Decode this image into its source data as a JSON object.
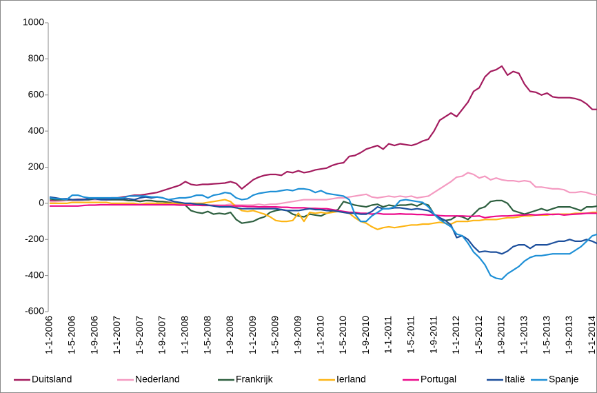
{
  "chart_data": {
    "type": "line",
    "categories": [
      "1-1-2006",
      null,
      null,
      null,
      "1-5-2006",
      null,
      null,
      null,
      "1-9-2006",
      null,
      null,
      null,
      "1-1-2007",
      null,
      null,
      null,
      "1-5-2007",
      null,
      null,
      null,
      "1-9-2007",
      null,
      null,
      null,
      "1-1-2008",
      null,
      null,
      null,
      "1-5-2008",
      null,
      null,
      null,
      "1-9-2008",
      null,
      null,
      null,
      "1-1-2009",
      null,
      null,
      null,
      "1-5-2009",
      null,
      null,
      null,
      "1-9-2009",
      null,
      null,
      null,
      "1-1-2010",
      null,
      null,
      null,
      "1-5-2010",
      null,
      null,
      null,
      "1-9-2010",
      null,
      null,
      null,
      "1-1-2011",
      null,
      null,
      null,
      "1-5-2011",
      null,
      null,
      null,
      "1-9-2011",
      null,
      null,
      null,
      "1-1-2012",
      null,
      null,
      null,
      "1-5-2012",
      null,
      null,
      null,
      "1-9-2012",
      null,
      null,
      null,
      "1-1-2013",
      null,
      null,
      null,
      "1-5-2013",
      null,
      null,
      null,
      "1-9-2013",
      null,
      null,
      null,
      "1-1-2014",
      null
    ],
    "series": [
      {
        "name": "Duitsland",
        "color": "#a31b5e",
        "values": [
          15,
          15,
          18,
          20,
          20,
          22,
          22,
          25,
          25,
          25,
          28,
          30,
          30,
          35,
          40,
          45,
          45,
          50,
          55,
          60,
          70,
          80,
          90,
          100,
          120,
          105,
          100,
          105,
          105,
          108,
          110,
          112,
          120,
          110,
          80,
          105,
          130,
          145,
          155,
          160,
          160,
          155,
          175,
          170,
          180,
          170,
          175,
          185,
          190,
          195,
          210,
          220,
          225,
          260,
          265,
          280,
          300,
          310,
          320,
          300,
          330,
          320,
          330,
          325,
          320,
          330,
          345,
          355,
          400,
          460,
          480,
          500,
          480,
          520,
          560,
          620,
          640,
          700,
          730,
          740,
          760,
          710,
          730,
          720,
          660,
          620,
          615,
          600,
          610,
          590,
          585,
          585,
          585,
          580,
          570,
          550,
          520,
          520
        ]
      },
      {
        "name": "Nederland",
        "color": "#f49ac1",
        "values": [
          10,
          10,
          12,
          15,
          15,
          15,
          18,
          20,
          20,
          20,
          18,
          20,
          20,
          18,
          15,
          15,
          15,
          15,
          12,
          12,
          10,
          8,
          5,
          5,
          0,
          -5,
          -5,
          -5,
          -10,
          -10,
          -10,
          -10,
          -5,
          -10,
          -10,
          -10,
          -10,
          -5,
          -10,
          -5,
          -5,
          0,
          5,
          10,
          15,
          20,
          20,
          20,
          20,
          20,
          25,
          30,
          30,
          35,
          40,
          45,
          50,
          35,
          30,
          35,
          40,
          35,
          40,
          35,
          40,
          30,
          35,
          40,
          60,
          80,
          100,
          120,
          145,
          150,
          170,
          160,
          140,
          150,
          130,
          140,
          130,
          125,
          125,
          120,
          125,
          120,
          90,
          90,
          85,
          80,
          80,
          75,
          60,
          60,
          65,
          60,
          50,
          45
        ]
      },
      {
        "name": "Frankrijk",
        "color": "#2d5f3f",
        "values": [
          25,
          20,
          20,
          20,
          20,
          20,
          20,
          20,
          25,
          25,
          20,
          20,
          20,
          20,
          15,
          15,
          10,
          15,
          15,
          10,
          10,
          5,
          0,
          0,
          -10,
          -40,
          -50,
          -55,
          -45,
          -60,
          -55,
          -60,
          -50,
          -90,
          -110,
          -105,
          -100,
          -85,
          -75,
          -50,
          -40,
          -35,
          -40,
          -60,
          -70,
          -75,
          -60,
          -65,
          -70,
          -55,
          -45,
          -35,
          10,
          0,
          -10,
          -15,
          -20,
          -10,
          -5,
          -20,
          -10,
          -15,
          -10,
          -10,
          -5,
          -15,
          0,
          -10,
          -60,
          -90,
          -95,
          -90,
          -70,
          -75,
          -90,
          -60,
          -30,
          -20,
          10,
          15,
          15,
          0,
          -40,
          -50,
          -60,
          -50,
          -40,
          -30,
          -40,
          -30,
          -20,
          -20,
          -20,
          -30,
          -40,
          -20,
          -20,
          -15
        ]
      },
      {
        "name": "Ierland",
        "color": "#fdb515",
        "values": [
          0,
          0,
          0,
          0,
          5,
          5,
          5,
          5,
          5,
          5,
          5,
          0,
          0,
          0,
          0,
          0,
          -5,
          0,
          0,
          0,
          0,
          0,
          0,
          -5,
          -5,
          0,
          0,
          0,
          5,
          10,
          15,
          20,
          10,
          -20,
          -40,
          -45,
          -40,
          -50,
          -60,
          -75,
          -95,
          -100,
          -100,
          -95,
          -55,
          -100,
          -50,
          -55,
          -50,
          -55,
          -50,
          -45,
          -50,
          -55,
          -80,
          -100,
          -110,
          -130,
          -145,
          -135,
          -130,
          -135,
          -130,
          -125,
          -120,
          -120,
          -115,
          -115,
          -110,
          -105,
          -110,
          -115,
          -100,
          -100,
          -100,
          -95,
          -95,
          -90,
          -90,
          -90,
          -85,
          -80,
          -80,
          -75,
          -70,
          -70,
          -65,
          -65,
          -65,
          -60,
          -60,
          -60,
          -60,
          -55,
          -55,
          -55,
          -50,
          -50
        ]
      },
      {
        "name": "Portugal",
        "color": "#ec0b8c",
        "values": [
          -15,
          -15,
          -15,
          -15,
          -15,
          -15,
          -12,
          -10,
          -10,
          -8,
          -8,
          -8,
          -8,
          -8,
          -8,
          -8,
          -8,
          -8,
          -8,
          -8,
          -8,
          -8,
          -8,
          -10,
          -10,
          -10,
          -10,
          -12,
          -12,
          -12,
          -15,
          -15,
          -15,
          -15,
          -15,
          -18,
          -18,
          -20,
          -20,
          -20,
          -20,
          -22,
          -22,
          -25,
          -25,
          -25,
          -28,
          -28,
          -30,
          -30,
          -35,
          -40,
          -45,
          -50,
          -50,
          -55,
          -55,
          -60,
          -55,
          -60,
          -60,
          -60,
          -58,
          -60,
          -60,
          -62,
          -62,
          -65,
          -65,
          -68,
          -70,
          -70,
          -70,
          -70,
          -72,
          -72,
          -70,
          -80,
          -75,
          -72,
          -70,
          -70,
          -68,
          -65,
          -65,
          -62,
          -65,
          -62,
          -60,
          -62,
          -60,
          -65,
          -62,
          -60,
          -58,
          -55,
          -55,
          -55
        ]
      },
      {
        "name": "Italië",
        "color": "#1c4f9c",
        "values": [
          35,
          30,
          25,
          25,
          20,
          20,
          20,
          25,
          25,
          20,
          20,
          25,
          25,
          25,
          25,
          20,
          30,
          35,
          30,
          35,
          30,
          20,
          10,
          5,
          0,
          0,
          -5,
          -5,
          -10,
          -15,
          -20,
          -20,
          -20,
          -25,
          -30,
          -30,
          -30,
          -30,
          -30,
          -30,
          -30,
          -35,
          -40,
          -40,
          -40,
          -35,
          -30,
          -35,
          -35,
          -40,
          -40,
          -45,
          -50,
          -55,
          -55,
          -60,
          -60,
          -45,
          -20,
          -30,
          -30,
          -25,
          -25,
          -30,
          -35,
          -30,
          -35,
          -40,
          -60,
          -80,
          -95,
          -120,
          -190,
          -180,
          -200,
          -240,
          -270,
          -265,
          -270,
          -270,
          -280,
          -265,
          -240,
          -230,
          -230,
          -250,
          -230,
          -230,
          -230,
          -220,
          -210,
          -210,
          -200,
          -210,
          -210,
          -200,
          -210,
          -225
        ]
      },
      {
        "name": "Spanje",
        "color": "#1d8fd6",
        "values": [
          30,
          25,
          25,
          20,
          45,
          45,
          35,
          30,
          30,
          30,
          30,
          30,
          30,
          30,
          40,
          40,
          40,
          40,
          35,
          35,
          30,
          20,
          25,
          30,
          30,
          35,
          45,
          45,
          30,
          45,
          50,
          60,
          55,
          30,
          20,
          25,
          45,
          55,
          60,
          65,
          65,
          70,
          75,
          70,
          80,
          80,
          75,
          60,
          70,
          55,
          50,
          45,
          40,
          20,
          -60,
          -100,
          -100,
          -70,
          -50,
          -30,
          -30,
          -20,
          15,
          20,
          15,
          10,
          5,
          -20,
          -60,
          -90,
          -110,
          -130,
          -170,
          -180,
          -220,
          -270,
          -300,
          -340,
          -400,
          -415,
          -420,
          -390,
          -370,
          -350,
          -320,
          -300,
          -290,
          -290,
          -285,
          -280,
          -280,
          -280,
          -280,
          -260,
          -240,
          -210,
          -180,
          -170
        ]
      }
    ],
    "ylim": [
      -600,
      1000
    ],
    "yticks": [
      -600,
      -400,
      -200,
      0,
      200,
      400,
      600,
      800,
      1000
    ],
    "grid": false,
    "legend": "bottom"
  }
}
